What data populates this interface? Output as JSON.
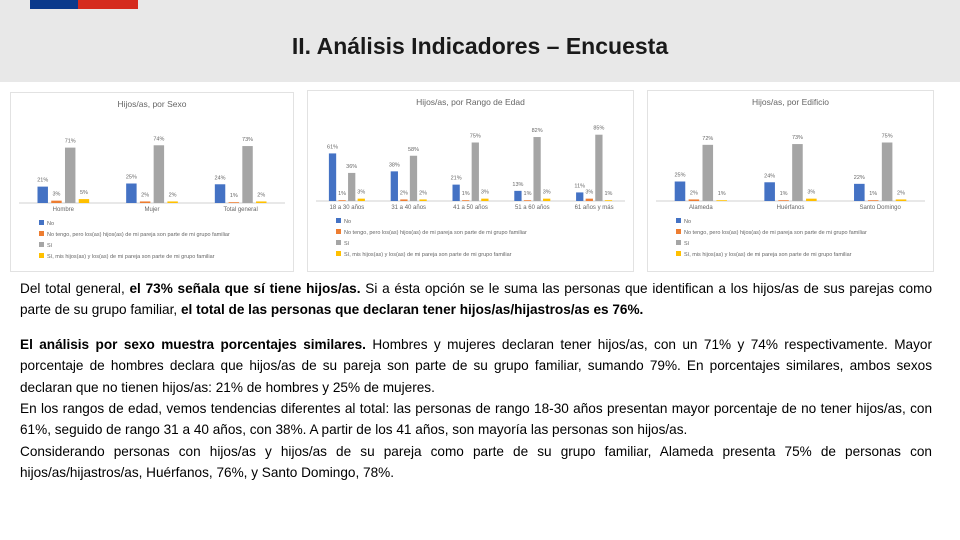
{
  "header": {
    "title": "II. Análisis Indicadores – Encuesta"
  },
  "charts": [
    {
      "type": "bar",
      "title": "Hijos/as, por Sexo",
      "categories": [
        "Hombre",
        "Mujer",
        "Total general"
      ],
      "ylim": [
        0,
        100
      ],
      "series": [
        {
          "name": "No",
          "color": "#4472c4",
          "values": [
            21,
            25,
            24
          ],
          "value_labels": [
            "21%",
            "25%",
            "24%"
          ]
        },
        {
          "name": "No tengo, pero los(as) hijos(as) de mi pareja son parte de mi grupo familiar",
          "color": "#ed7d31",
          "values": [
            3,
            2,
            1
          ],
          "value_labels": [
            "3%",
            "2%",
            "1%"
          ]
        },
        {
          "name": "Sí",
          "color": "#a5a5a5",
          "values": [
            71,
            74,
            73
          ],
          "value_labels": [
            "71%",
            "74%",
            "73%"
          ]
        },
        {
          "name": "Sí, mis hijos(as) y los(as) de mi pareja son parte de mi grupo familiar",
          "color": "#ffc000",
          "values": [
            5,
            2,
            2
          ],
          "value_labels": [
            "5%",
            "2%",
            "2%"
          ]
        }
      ]
    },
    {
      "type": "bar",
      "title": "Hijos/as, por Rango de Edad",
      "categories": [
        "18 a 30 años",
        "31 a 40 años",
        "41 a 50 años",
        "51 a 60 años",
        "61 años y más"
      ],
      "ylim": [
        0,
        100
      ],
      "series": [
        {
          "name": "No",
          "color": "#4472c4",
          "values": [
            61,
            38,
            21,
            13,
            11
          ],
          "value_labels": [
            "61%",
            "38%",
            "21%",
            "13%",
            "11%"
          ]
        },
        {
          "name": "No tengo, pero los(as) hijos(as) de mi pareja son parte de mi grupo familiar",
          "color": "#ed7d31",
          "values": [
            1,
            2,
            1,
            1,
            3
          ],
          "value_labels": [
            "1%",
            "2%",
            "1%",
            "1%",
            "3%"
          ]
        },
        {
          "name": "Sí",
          "color": "#a5a5a5",
          "values": [
            36,
            58,
            75,
            82,
            85
          ],
          "value_labels": [
            "36%",
            "58%",
            "75%",
            "82%",
            "85%"
          ]
        },
        {
          "name": "Sí, mis hijos(as) y los(as) de mi pareja son parte de mi grupo familiar",
          "color": "#ffc000",
          "values": [
            3,
            2,
            3,
            3,
            1
          ],
          "value_labels": [
            "3%",
            "2%",
            "3%",
            "3%",
            "1%"
          ]
        }
      ]
    },
    {
      "type": "bar",
      "title": "Hijos/as, por Edificio",
      "categories": [
        "Alameda",
        "Huérfanos",
        "Santo Domingo"
      ],
      "ylim": [
        0,
        100
      ],
      "series": [
        {
          "name": "No",
          "color": "#4472c4",
          "values": [
            25,
            24,
            22
          ],
          "value_labels": [
            "25%",
            "24%",
            "22%"
          ]
        },
        {
          "name": "No tengo, pero los(as) hijos(as) de mi pareja son parte de mi grupo familiar",
          "color": "#ed7d31",
          "values": [
            2,
            1,
            1
          ],
          "value_labels": [
            "2%",
            "1%",
            "1%"
          ]
        },
        {
          "name": "Sí",
          "color": "#a5a5a5",
          "values": [
            72,
            73,
            75
          ],
          "value_labels": [
            "72%",
            "73%",
            "75%"
          ]
        },
        {
          "name": "Sí, mis hijos(as) y los(as) de mi pareja son parte de mi grupo familiar",
          "color": "#ffc000",
          "values": [
            1,
            3,
            2
          ],
          "value_labels": [
            "1%",
            "3%",
            "2%"
          ]
        }
      ]
    }
  ],
  "paragraphs": [
    {
      "runs": [
        {
          "text": "Del total general, ",
          "bold": false
        },
        {
          "text": "el 73% señala que sí tiene hijos/as.",
          "bold": true
        },
        {
          "text": " Si a ésta opción se le suma las personas que identifican a los hijos/as de sus parejas como parte de su grupo familiar, ",
          "bold": false
        },
        {
          "text": "el total de las personas que declaran tener hijos/as/hijastros/as es 76%.",
          "bold": true
        }
      ]
    },
    {
      "runs": [
        {
          "text": "El análisis por sexo muestra porcentajes similares.",
          "bold": true
        },
        {
          "text": " Hombres y mujeres declaran tener hijos/as, con un 71% y 74% respectivamente. Mayor porcentaje de hombres declara que hijos/as de su pareja son parte de su grupo familiar, sumando 79%. En porcentajes similares, ambos sexos declaran que no tienen hijos/as: 21% de hombres y 25% de mujeres.",
          "bold": false
        }
      ]
    },
    {
      "runs": [
        {
          "text": "En los rangos de edad, vemos tendencias diferentes al total: las personas de rango 18-30 años presentan mayor porcentaje de no tener hijos/as, con 61%, seguido de rango 31 a 40 años, con 38%. A partir de los 41 años, son mayoría las personas son hijos/as.",
          "bold": false
        }
      ]
    },
    {
      "runs": [
        {
          "text": "Considerando personas con hijos/as y hijos/as de su pareja como parte de su grupo familiar, Alameda presenta 75% de personas con hijos/as/hijastros/as, Huérfanos, 76%, y Santo Domingo, 78%.",
          "bold": false
        }
      ]
    }
  ]
}
